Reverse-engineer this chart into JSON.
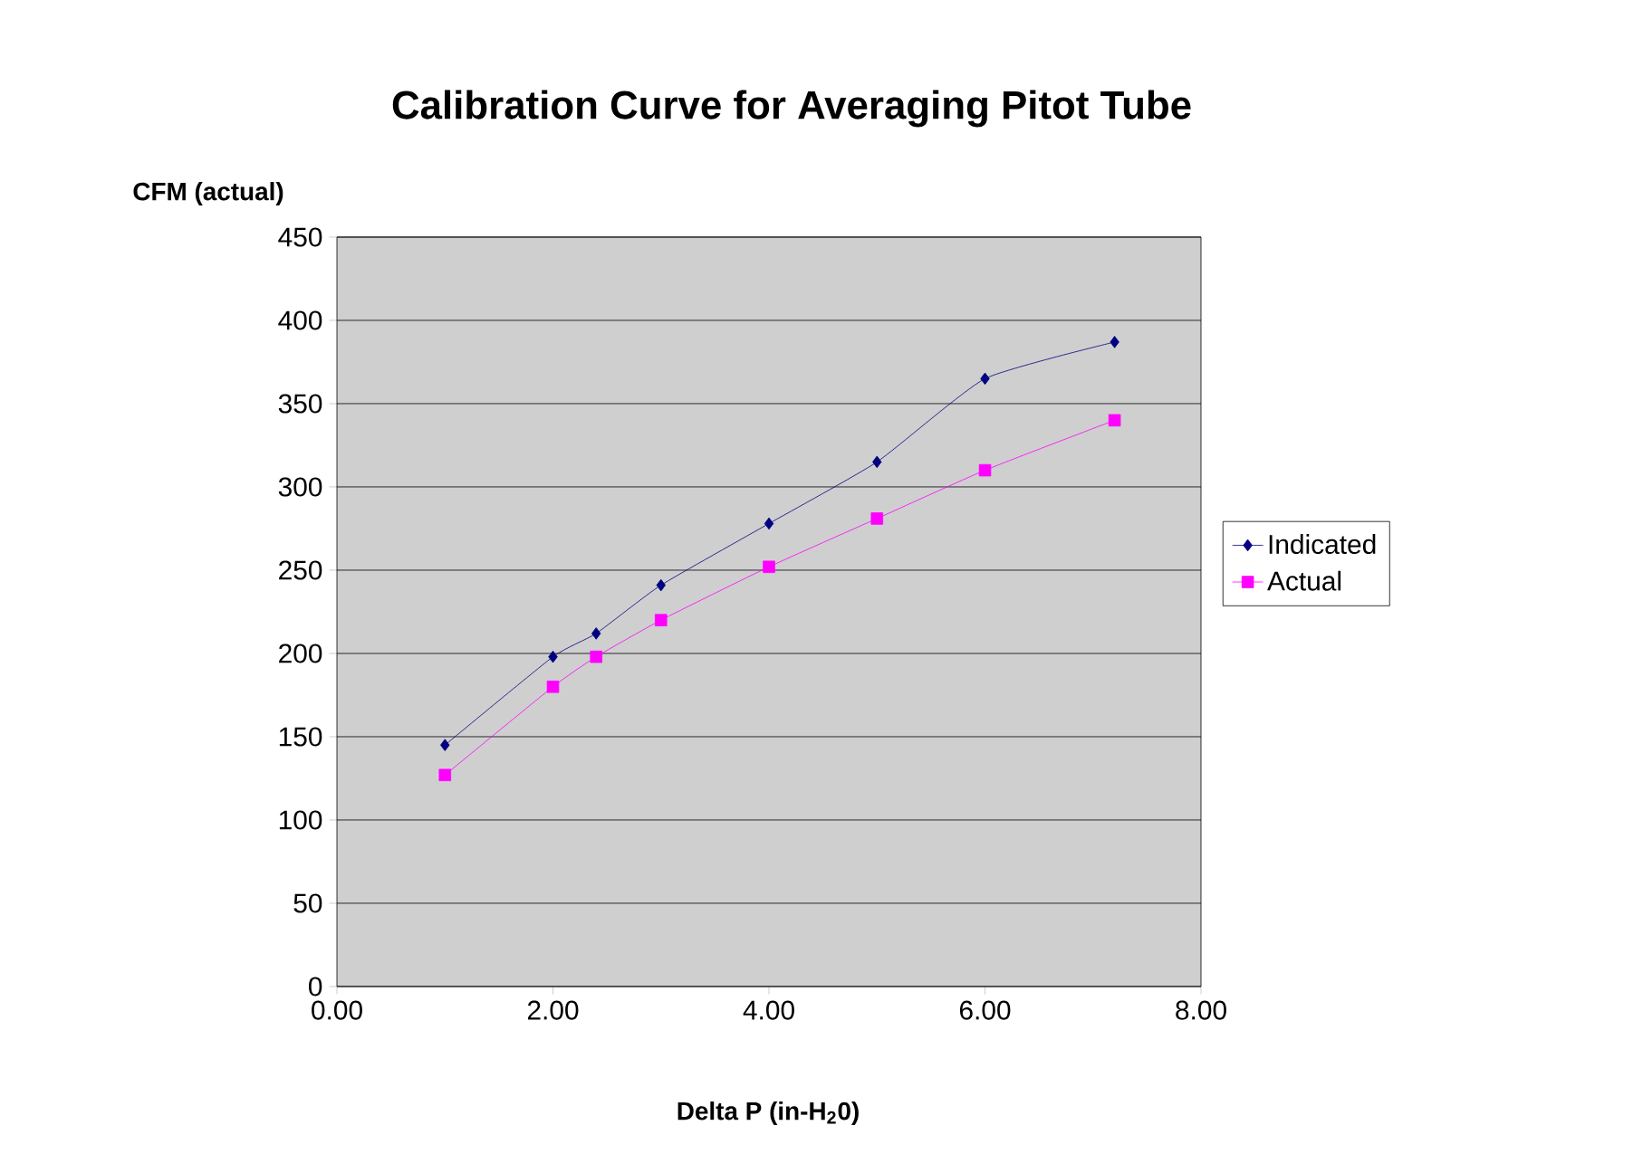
{
  "chart_data": {
    "type": "line",
    "title": "Calibration Curve for Averaging Pitot Tube",
    "xlabel": "Delta P (in-H$_{2}$0)",
    "ylabel": "CFM (actual)",
    "xlim": [
      0,
      8
    ],
    "xticks": [
      {
        "value": 0,
        "label": "0.00"
      },
      {
        "value": 2,
        "label": "2.00"
      },
      {
        "value": 4,
        "label": "4.00"
      },
      {
        "value": 6,
        "label": "6.00"
      },
      {
        "value": 8,
        "label": "8.00"
      }
    ],
    "ylim": [
      0,
      450
    ],
    "yticks": [
      0,
      50,
      100,
      150,
      200,
      250,
      300,
      350,
      400,
      450
    ],
    "grid": "y",
    "legend": "right",
    "x": [
      1,
      2,
      2.4,
      3,
      4,
      5,
      6,
      7.2
    ],
    "series": [
      {
        "name": "Indicated",
        "color": "#000080",
        "marker": "diamond",
        "values": [
          145,
          198,
          212,
          241,
          278,
          315,
          365,
          387
        ]
      },
      {
        "name": "Actual",
        "color": "#ff00ff",
        "marker": "square",
        "values": [
          127,
          180,
          198,
          220,
          252,
          281,
          310,
          340
        ]
      }
    ]
  }
}
